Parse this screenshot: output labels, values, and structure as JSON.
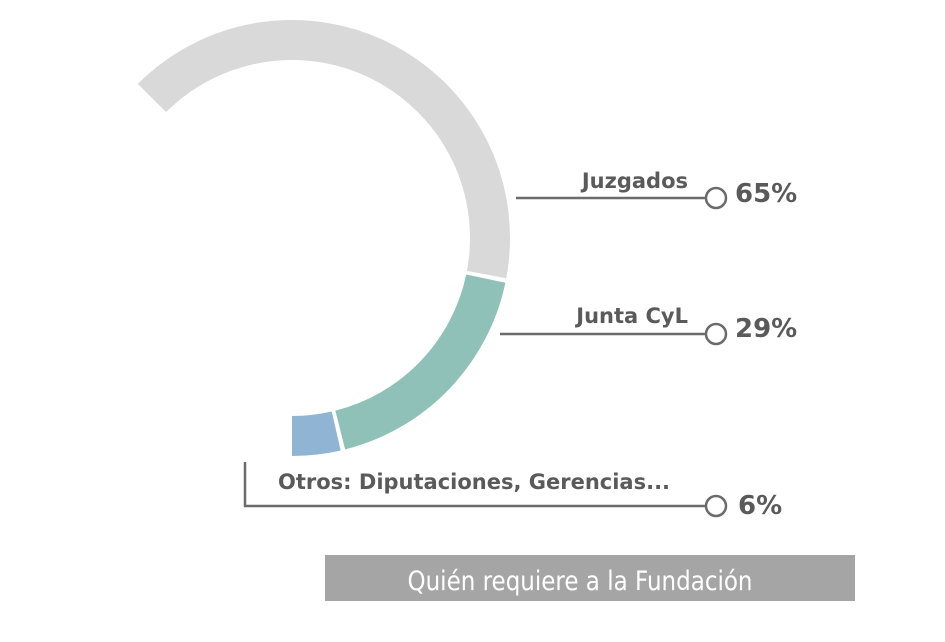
{
  "chart_data": {
    "type": "pie",
    "title": "",
    "caption": "Quién requiere a la Fundación",
    "categories": [
      "Juzgados",
      "Junta CyL",
      "Otros: Diputaciones, Gerencias..."
    ],
    "values": [
      65,
      29,
      6
    ],
    "value_labels": [
      "65%",
      "29%",
      "6%"
    ],
    "colors": [
      "#d9d9d9",
      "#8fc1b8",
      "#8fb4d4"
    ],
    "style": "open-ring"
  }
}
